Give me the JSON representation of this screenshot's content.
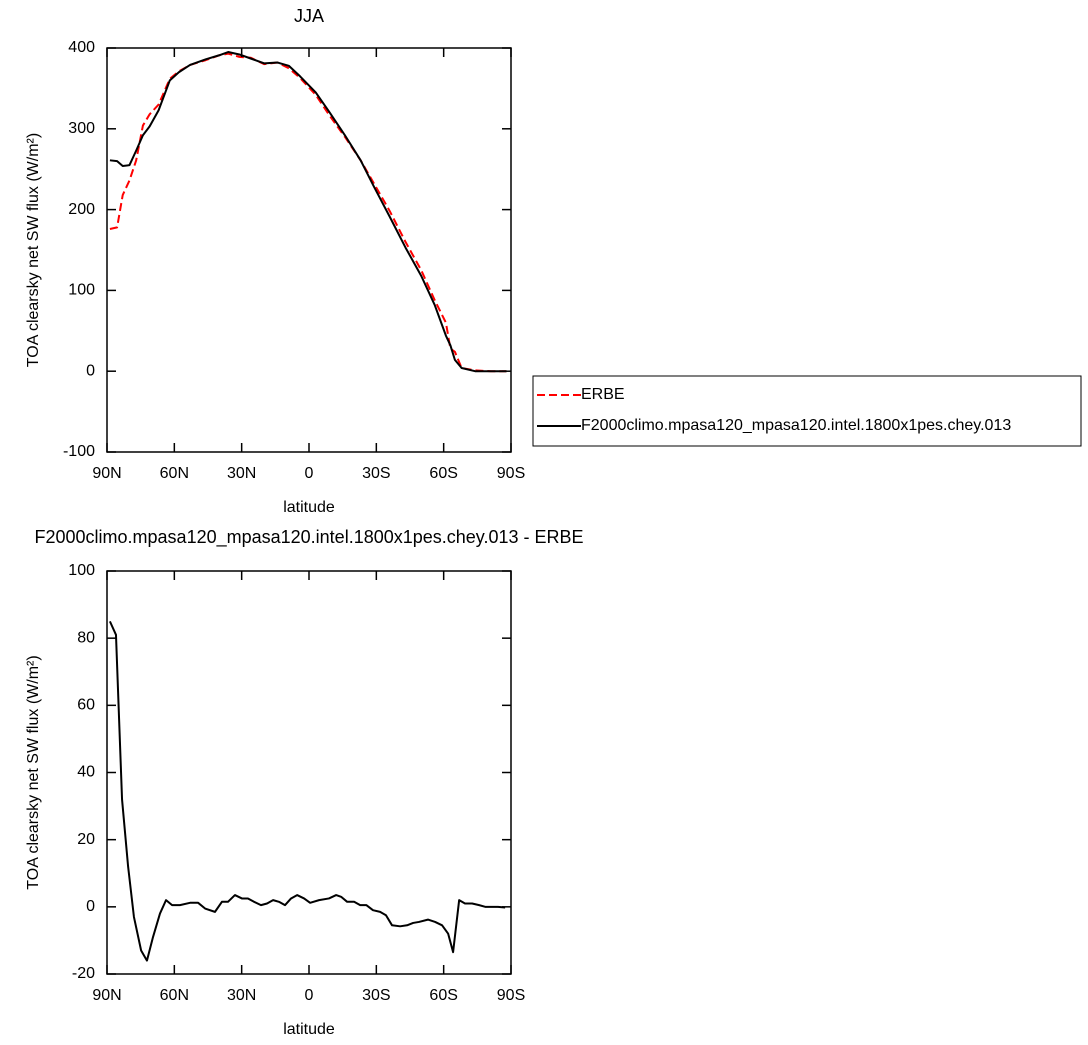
{
  "chart_data": [
    {
      "type": "line",
      "title": "JJA",
      "xlabel": "latitude",
      "ylabel": "TOA clearsky net SW flux (W/m²)",
      "x": [
        88.7,
        85.5,
        83,
        80,
        77,
        74,
        71,
        67,
        62,
        58,
        53,
        46,
        40,
        36,
        31,
        26,
        20,
        14,
        9,
        4,
        -3,
        -9,
        -16,
        -23,
        -29,
        -36,
        -43,
        -50,
        -56,
        -61,
        -63,
        -65,
        -68,
        -74,
        -81,
        -88
      ],
      "series": [
        {
          "name": "ERBE",
          "color": "#ff0000",
          "line_style": "dashed",
          "values": [
            176,
            178,
            218,
            236,
            261,
            304,
            318,
            330,
            362,
            371,
            379,
            385,
            391,
            393,
            389,
            388,
            380,
            382,
            375,
            363,
            342,
            317,
            290,
            261,
            232,
            198,
            160,
            125,
            88,
            60,
            28,
            24,
            4,
            1,
            0,
            0
          ]
        },
        {
          "name": "F2000climo.mpasa120_mpasa120.intel.1800x1pes.chey.013",
          "color": "#000000",
          "line_style": "solid",
          "values": [
            261,
            260,
            254,
            255,
            273,
            292,
            303,
            323,
            360,
            370,
            379,
            386,
            391,
            395,
            392,
            387,
            381,
            382,
            378,
            365,
            345,
            321,
            292,
            261,
            228,
            191,
            153,
            118,
            82,
            44,
            32,
            14,
            4,
            0,
            0,
            0
          ]
        }
      ],
      "xlim": [
        90,
        -90
      ],
      "xticks": [
        {
          "value": 90,
          "label": "90N"
        },
        {
          "value": 60,
          "label": "60N"
        },
        {
          "value": 30,
          "label": "30N"
        },
        0,
        {
          "value": -30,
          "label": "30S"
        },
        {
          "value": -60,
          "label": "60S"
        },
        {
          "value": -90,
          "label": "90S"
        }
      ],
      "ylim": [
        -100,
        400
      ],
      "yticks": [
        -100,
        0,
        100,
        200,
        300,
        400
      ],
      "legend": "right",
      "grid": false
    },
    {
      "type": "line",
      "title": "F2000climo.mpasa120_mpasa120.intel.1800x1pes.chey.013 - ERBE",
      "xlabel": "latitude",
      "ylabel": "TOA clearsky net SW flux (W/m²)",
      "x": [
        88.7,
        86,
        83.3,
        80.6,
        78,
        74.8,
        72.2,
        69.5,
        66.4,
        63.7,
        61,
        57.5,
        53,
        49.4,
        46.3,
        41.9,
        38.8,
        36.1,
        33,
        29.9,
        27.2,
        24.5,
        21.4,
        18.7,
        16,
        13.4,
        10.7,
        8,
        5.3,
        2.2,
        -0.5,
        -4.5,
        -8.9,
        -12.1,
        -14.3,
        -17,
        -20.1,
        -22.8,
        -25.6,
        -28.5,
        -31.7,
        -34.3,
        -37,
        -40.6,
        -43.7,
        -46.4,
        -49,
        -53,
        -56.2,
        -59.3,
        -62,
        -64.2,
        -66.9,
        -69.5,
        -72.7,
        -75.8,
        -78.5,
        -80.7,
        -84.2,
        -87.4
      ],
      "series": [
        {
          "color": "#000000",
          "line_style": "solid",
          "values": [
            85,
            81,
            32,
            12,
            -3,
            -13,
            -16,
            -9,
            -2,
            2,
            0.5,
            0.5,
            1.2,
            1.2,
            -0.5,
            -1.5,
            1.5,
            1.5,
            3.5,
            2.5,
            2.5,
            1.5,
            0.5,
            1,
            2,
            1.5,
            0.5,
            2.5,
            3.5,
            2.5,
            1.2,
            2,
            2.5,
            3.5,
            3,
            1.5,
            1.5,
            0.5,
            0.5,
            -1,
            -1.5,
            -2.5,
            -5.5,
            -5.8,
            -5.5,
            -4.8,
            -4.5,
            -3.8,
            -4.5,
            -5.5,
            -8,
            -13.5,
            2,
            1,
            1,
            0.5,
            0,
            0,
            0,
            -0.2
          ]
        }
      ],
      "xlim": [
        90,
        -90
      ],
      "xticks": [
        {
          "value": 90,
          "label": "90N"
        },
        {
          "value": 60,
          "label": "60N"
        },
        {
          "value": 30,
          "label": "30N"
        },
        0,
        {
          "value": -30,
          "label": "30S"
        },
        {
          "value": -60,
          "label": "60S"
        },
        {
          "value": -90,
          "label": "90S"
        }
      ],
      "ylim": [
        -20,
        100
      ],
      "yticks": [
        -20,
        0,
        20,
        40,
        60,
        80,
        100
      ],
      "grid": false
    }
  ]
}
